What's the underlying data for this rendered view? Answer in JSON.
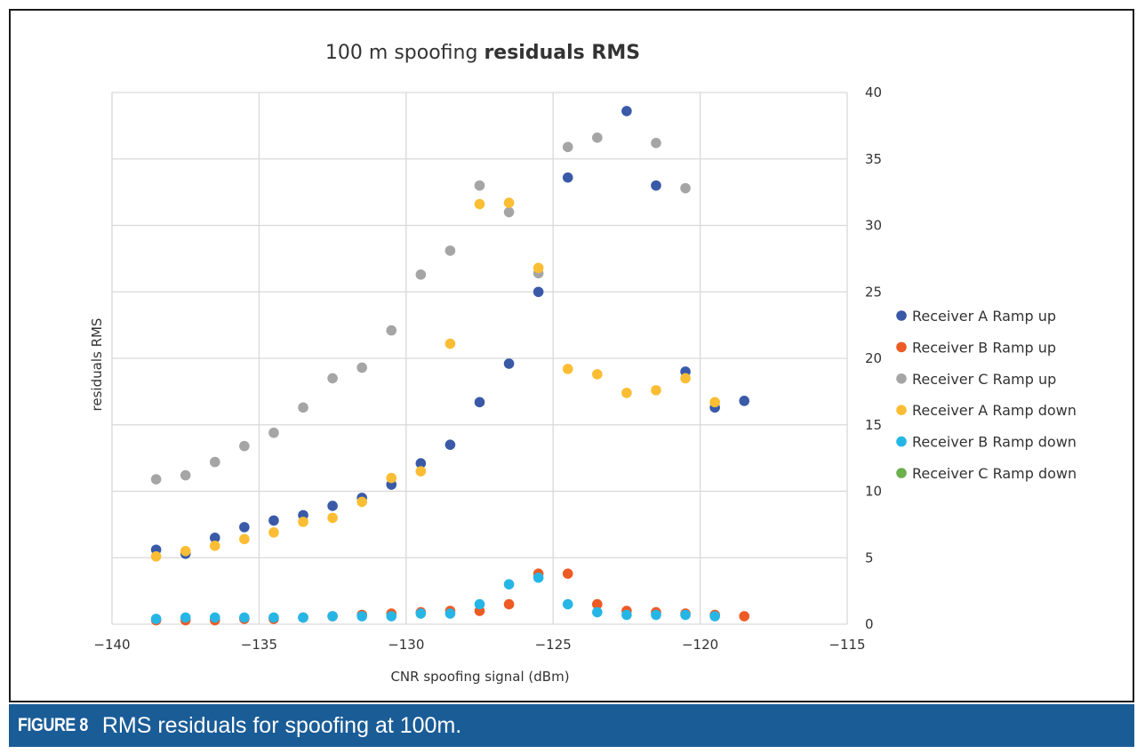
{
  "caption": {
    "label": "FIGURE 8",
    "text": "RMS residuals for spoofing at 100m."
  },
  "colors": {
    "receiver_a_up": "#3a5aa8",
    "receiver_b_up": "#ee5a24",
    "receiver_c_up": "#a5a5a5",
    "receiver_a_down": "#fbbd33",
    "receiver_b_down": "#26b6e6",
    "receiver_c_down": "#6ab04c",
    "caption_bar": "#1a5c96",
    "grid": "#d9d9d9"
  },
  "chart_data": {
    "type": "scatter",
    "title_normal": "100 m spoofing ",
    "title_bold": "residuals RMS",
    "xlabel": "CNR spoofing signal (dBm)",
    "ylabel": "residuals RMS",
    "xlim": [
      -140,
      -115
    ],
    "ylim": [
      0,
      40
    ],
    "x_ticks": [
      -140,
      -135,
      -130,
      -125,
      -120,
      -115
    ],
    "x_tick_labels": [
      "−140",
      "−135",
      "−130",
      "−125",
      "−120",
      "−115"
    ],
    "y_ticks": [
      0,
      5,
      10,
      15,
      20,
      25,
      30,
      35,
      40
    ],
    "y_tick_labels": [
      "0",
      "5",
      "10",
      "15",
      "20",
      "25",
      "30",
      "35",
      "40"
    ],
    "y_axis_side": "right",
    "legend_position": "right",
    "series": [
      {
        "name": "Receiver A Ramp up",
        "color_key": "receiver_a_up",
        "points": [
          [
            -138.5,
            5.6
          ],
          [
            -137.5,
            5.3
          ],
          [
            -136.5,
            6.5
          ],
          [
            -135.5,
            7.3
          ],
          [
            -134.5,
            7.8
          ],
          [
            -133.5,
            8.2
          ],
          [
            -132.5,
            8.9
          ],
          [
            -131.5,
            9.5
          ],
          [
            -130.5,
            10.5
          ],
          [
            -129.5,
            12.1
          ],
          [
            -128.5,
            13.5
          ],
          [
            -127.5,
            16.7
          ],
          [
            -126.5,
            19.6
          ],
          [
            -125.5,
            25.0
          ],
          [
            -124.5,
            33.6
          ],
          [
            -122.5,
            38.6
          ],
          [
            -121.5,
            33.0
          ],
          [
            -120.5,
            19.0
          ],
          [
            -119.5,
            16.3
          ],
          [
            -118.5,
            16.8
          ]
        ]
      },
      {
        "name": "Receiver B Ramp up",
        "color_key": "receiver_b_up",
        "points": [
          [
            -138.5,
            0.3
          ],
          [
            -137.5,
            0.3
          ],
          [
            -136.5,
            0.3
          ],
          [
            -135.5,
            0.4
          ],
          [
            -134.5,
            0.4
          ],
          [
            -133.5,
            0.5
          ],
          [
            -132.5,
            0.6
          ],
          [
            -131.5,
            0.7
          ],
          [
            -130.5,
            0.8
          ],
          [
            -129.5,
            0.9
          ],
          [
            -128.5,
            1.0
          ],
          [
            -127.5,
            1.0
          ],
          [
            -126.5,
            1.5
          ],
          [
            -125.5,
            3.8
          ],
          [
            -124.5,
            3.8
          ],
          [
            -123.5,
            1.5
          ],
          [
            -122.5,
            1.0
          ],
          [
            -121.5,
            0.9
          ],
          [
            -120.5,
            0.8
          ],
          [
            -119.5,
            0.7
          ],
          [
            -118.5,
            0.6
          ]
        ]
      },
      {
        "name": "Receiver C Ramp up",
        "color_key": "receiver_c_up",
        "points": [
          [
            -138.5,
            10.9
          ],
          [
            -137.5,
            11.2
          ],
          [
            -136.5,
            12.2
          ],
          [
            -135.5,
            13.4
          ],
          [
            -134.5,
            14.4
          ],
          [
            -133.5,
            16.3
          ],
          [
            -132.5,
            18.5
          ],
          [
            -131.5,
            19.3
          ],
          [
            -130.5,
            22.1
          ],
          [
            -129.5,
            26.3
          ],
          [
            -128.5,
            28.1
          ],
          [
            -127.5,
            33.0
          ],
          [
            -126.5,
            31.0
          ],
          [
            -125.5,
            26.4
          ],
          [
            -124.5,
            35.9
          ],
          [
            -123.5,
            36.6
          ],
          [
            -121.5,
            36.2
          ],
          [
            -120.5,
            32.8
          ]
        ]
      },
      {
        "name": "Receiver A Ramp down",
        "color_key": "receiver_a_down",
        "points": [
          [
            -138.5,
            5.1
          ],
          [
            -137.5,
            5.5
          ],
          [
            -136.5,
            5.9
          ],
          [
            -135.5,
            6.4
          ],
          [
            -134.5,
            6.9
          ],
          [
            -133.5,
            7.7
          ],
          [
            -132.5,
            8.0
          ],
          [
            -131.5,
            9.2
          ],
          [
            -130.5,
            11.0
          ],
          [
            -129.5,
            11.5
          ],
          [
            -128.5,
            21.1
          ],
          [
            -127.5,
            31.6
          ],
          [
            -126.5,
            31.7
          ],
          [
            -125.5,
            26.8
          ],
          [
            -124.5,
            19.2
          ],
          [
            -123.5,
            18.8
          ],
          [
            -122.5,
            17.4
          ],
          [
            -121.5,
            17.6
          ],
          [
            -120.5,
            18.5
          ],
          [
            -119.5,
            16.7
          ]
        ]
      },
      {
        "name": "Receiver B Ramp down",
        "color_key": "receiver_b_down",
        "points": [
          [
            -138.5,
            0.4
          ],
          [
            -137.5,
            0.5
          ],
          [
            -136.5,
            0.5
          ],
          [
            -135.5,
            0.5
          ],
          [
            -134.5,
            0.5
          ],
          [
            -133.5,
            0.5
          ],
          [
            -132.5,
            0.6
          ],
          [
            -131.5,
            0.6
          ],
          [
            -130.5,
            0.6
          ],
          [
            -129.5,
            0.8
          ],
          [
            -128.5,
            0.8
          ],
          [
            -127.5,
            1.5
          ],
          [
            -126.5,
            3.0
          ],
          [
            -125.5,
            3.5
          ],
          [
            -124.5,
            1.5
          ],
          [
            -123.5,
            0.9
          ],
          [
            -122.5,
            0.7
          ],
          [
            -121.5,
            0.7
          ],
          [
            -120.5,
            0.7
          ],
          [
            -119.5,
            0.6
          ]
        ]
      },
      {
        "name": "Receiver C Ramp down",
        "color_key": "receiver_c_down",
        "points": []
      }
    ]
  }
}
